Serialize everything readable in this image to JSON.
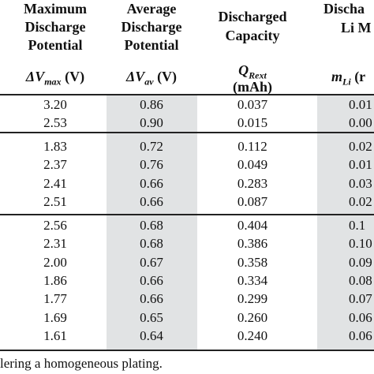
{
  "table": {
    "headers": [
      {
        "lines": [
          "Maximum",
          "Discharge",
          "Potential"
        ],
        "symbol": {
          "base": "ΔV",
          "sub": "max",
          "unit": "(V)"
        }
      },
      {
        "lines": [
          "Average",
          "Discharge",
          "Potential"
        ],
        "symbol": {
          "base": "ΔV",
          "sub": "av",
          "unit": "(V)"
        }
      },
      {
        "lines": [
          "Discharged",
          "Capacity"
        ],
        "symbol": {
          "base": "Q",
          "sub": "Rext",
          "unit": "(mAh)"
        }
      },
      {
        "lines": [
          "Discha",
          "Li M"
        ],
        "symbol": {
          "base": "m",
          "sub": "Li",
          "unit": "(r"
        }
      }
    ],
    "groups": [
      [
        [
          "3.20",
          "0.86",
          "0.037",
          "0.01"
        ],
        [
          "2.53",
          "0.90",
          "0.015",
          "0.00"
        ]
      ],
      [
        [
          "1.83",
          "0.72",
          "0.112",
          "0.02"
        ],
        [
          "2.37",
          "0.76",
          "0.049",
          "0.01"
        ],
        [
          "2.41",
          "0.66",
          "0.283",
          "0.03"
        ],
        [
          "2.51",
          "0.66",
          "0.087",
          "0.02"
        ]
      ],
      [
        [
          "2.56",
          "0.68",
          "0.404",
          "0.1"
        ],
        [
          "2.31",
          "0.68",
          "0.386",
          "0.10"
        ],
        [
          "2.00",
          "0.67",
          "0.358",
          "0.09"
        ],
        [
          "1.86",
          "0.66",
          "0.334",
          "0.08"
        ],
        [
          "1.77",
          "0.66",
          "0.299",
          "0.07"
        ],
        [
          "1.69",
          "0.65",
          "0.260",
          "0.06"
        ],
        [
          "1.61",
          "0.64",
          "0.240",
          "0.06"
        ]
      ]
    ],
    "footnote": "lering a homogeneous plating."
  }
}
